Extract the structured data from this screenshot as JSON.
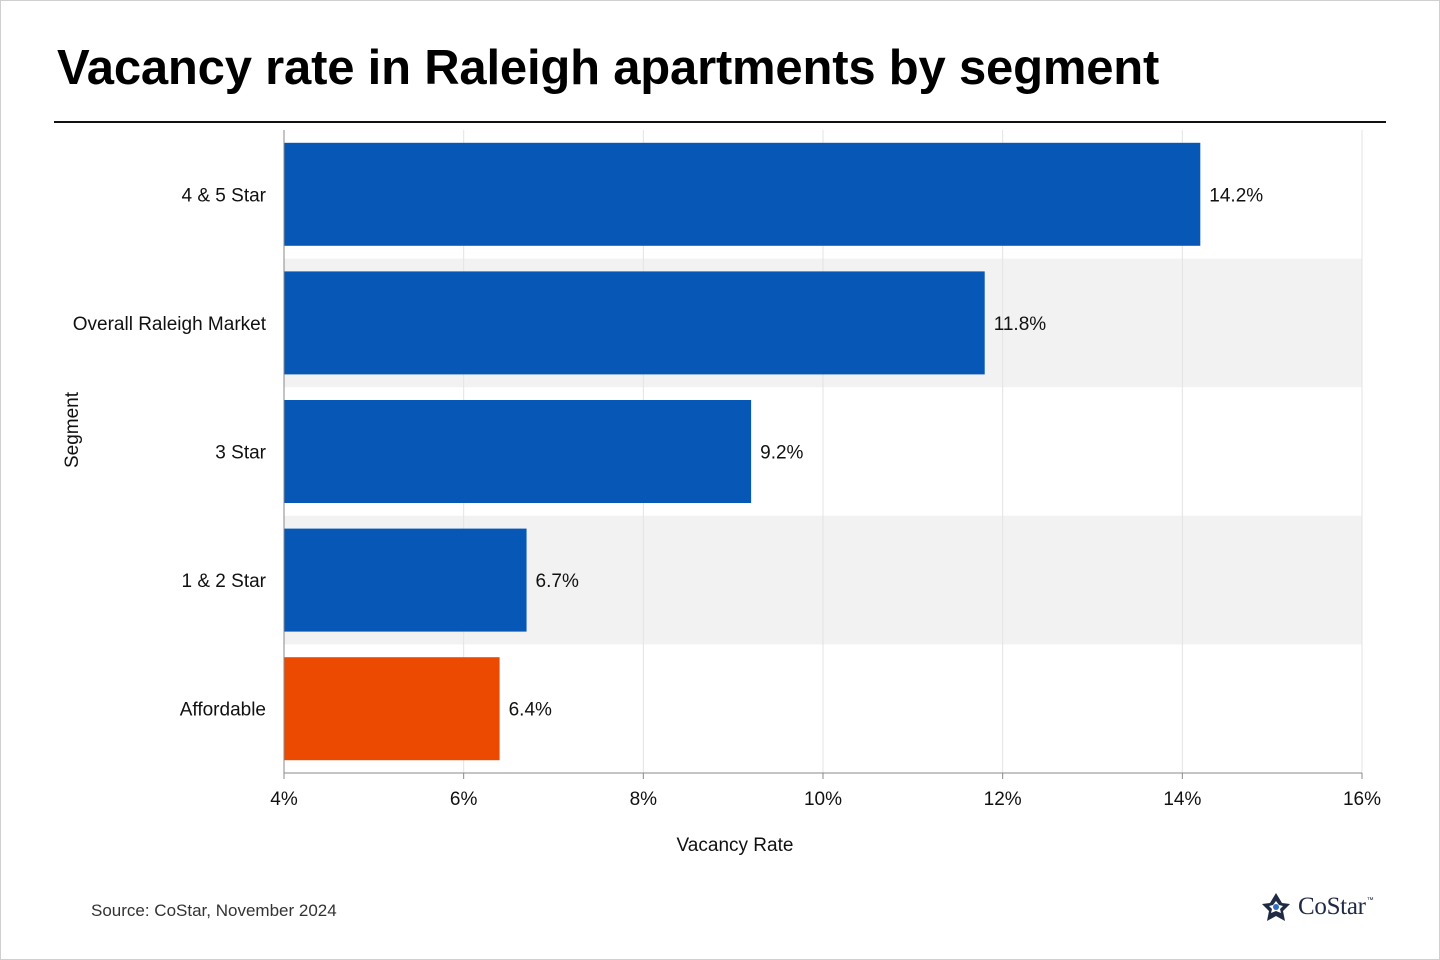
{
  "title": "Vacancy rate in Raleigh apartments by segment",
  "source": "Source: CoStar, November 2024",
  "brand": {
    "name": "CoStar",
    "mark": "™",
    "color": "#1f2a44"
  },
  "colors": {
    "bar": "#0757b6",
    "highlight": "#ec4a00",
    "band": "#f2f2f2",
    "grid": "#e3e3e3"
  },
  "chart_data": {
    "type": "bar",
    "orientation": "horizontal",
    "title": "Vacancy rate in Raleigh apartments by segment",
    "xlabel": "Vacancy Rate",
    "ylabel": "Segment",
    "xlim": [
      4,
      16
    ],
    "xticks": [
      4,
      6,
      8,
      10,
      12,
      14,
      16
    ],
    "xtick_labels": [
      "4%",
      "6%",
      "8%",
      "10%",
      "12%",
      "14%",
      "16%"
    ],
    "categories": [
      "4 & 5 Star",
      "Overall Raleigh Market",
      "3 Star",
      "1 & 2 Star",
      "Affordable"
    ],
    "values": [
      14.2,
      11.8,
      9.2,
      6.7,
      6.4
    ],
    "value_labels": [
      "14.2%",
      "11.8%",
      "9.2%",
      "6.7%",
      "6.4%"
    ],
    "highlighted": [
      "Affordable"
    ],
    "grid": true,
    "legend": "none"
  }
}
